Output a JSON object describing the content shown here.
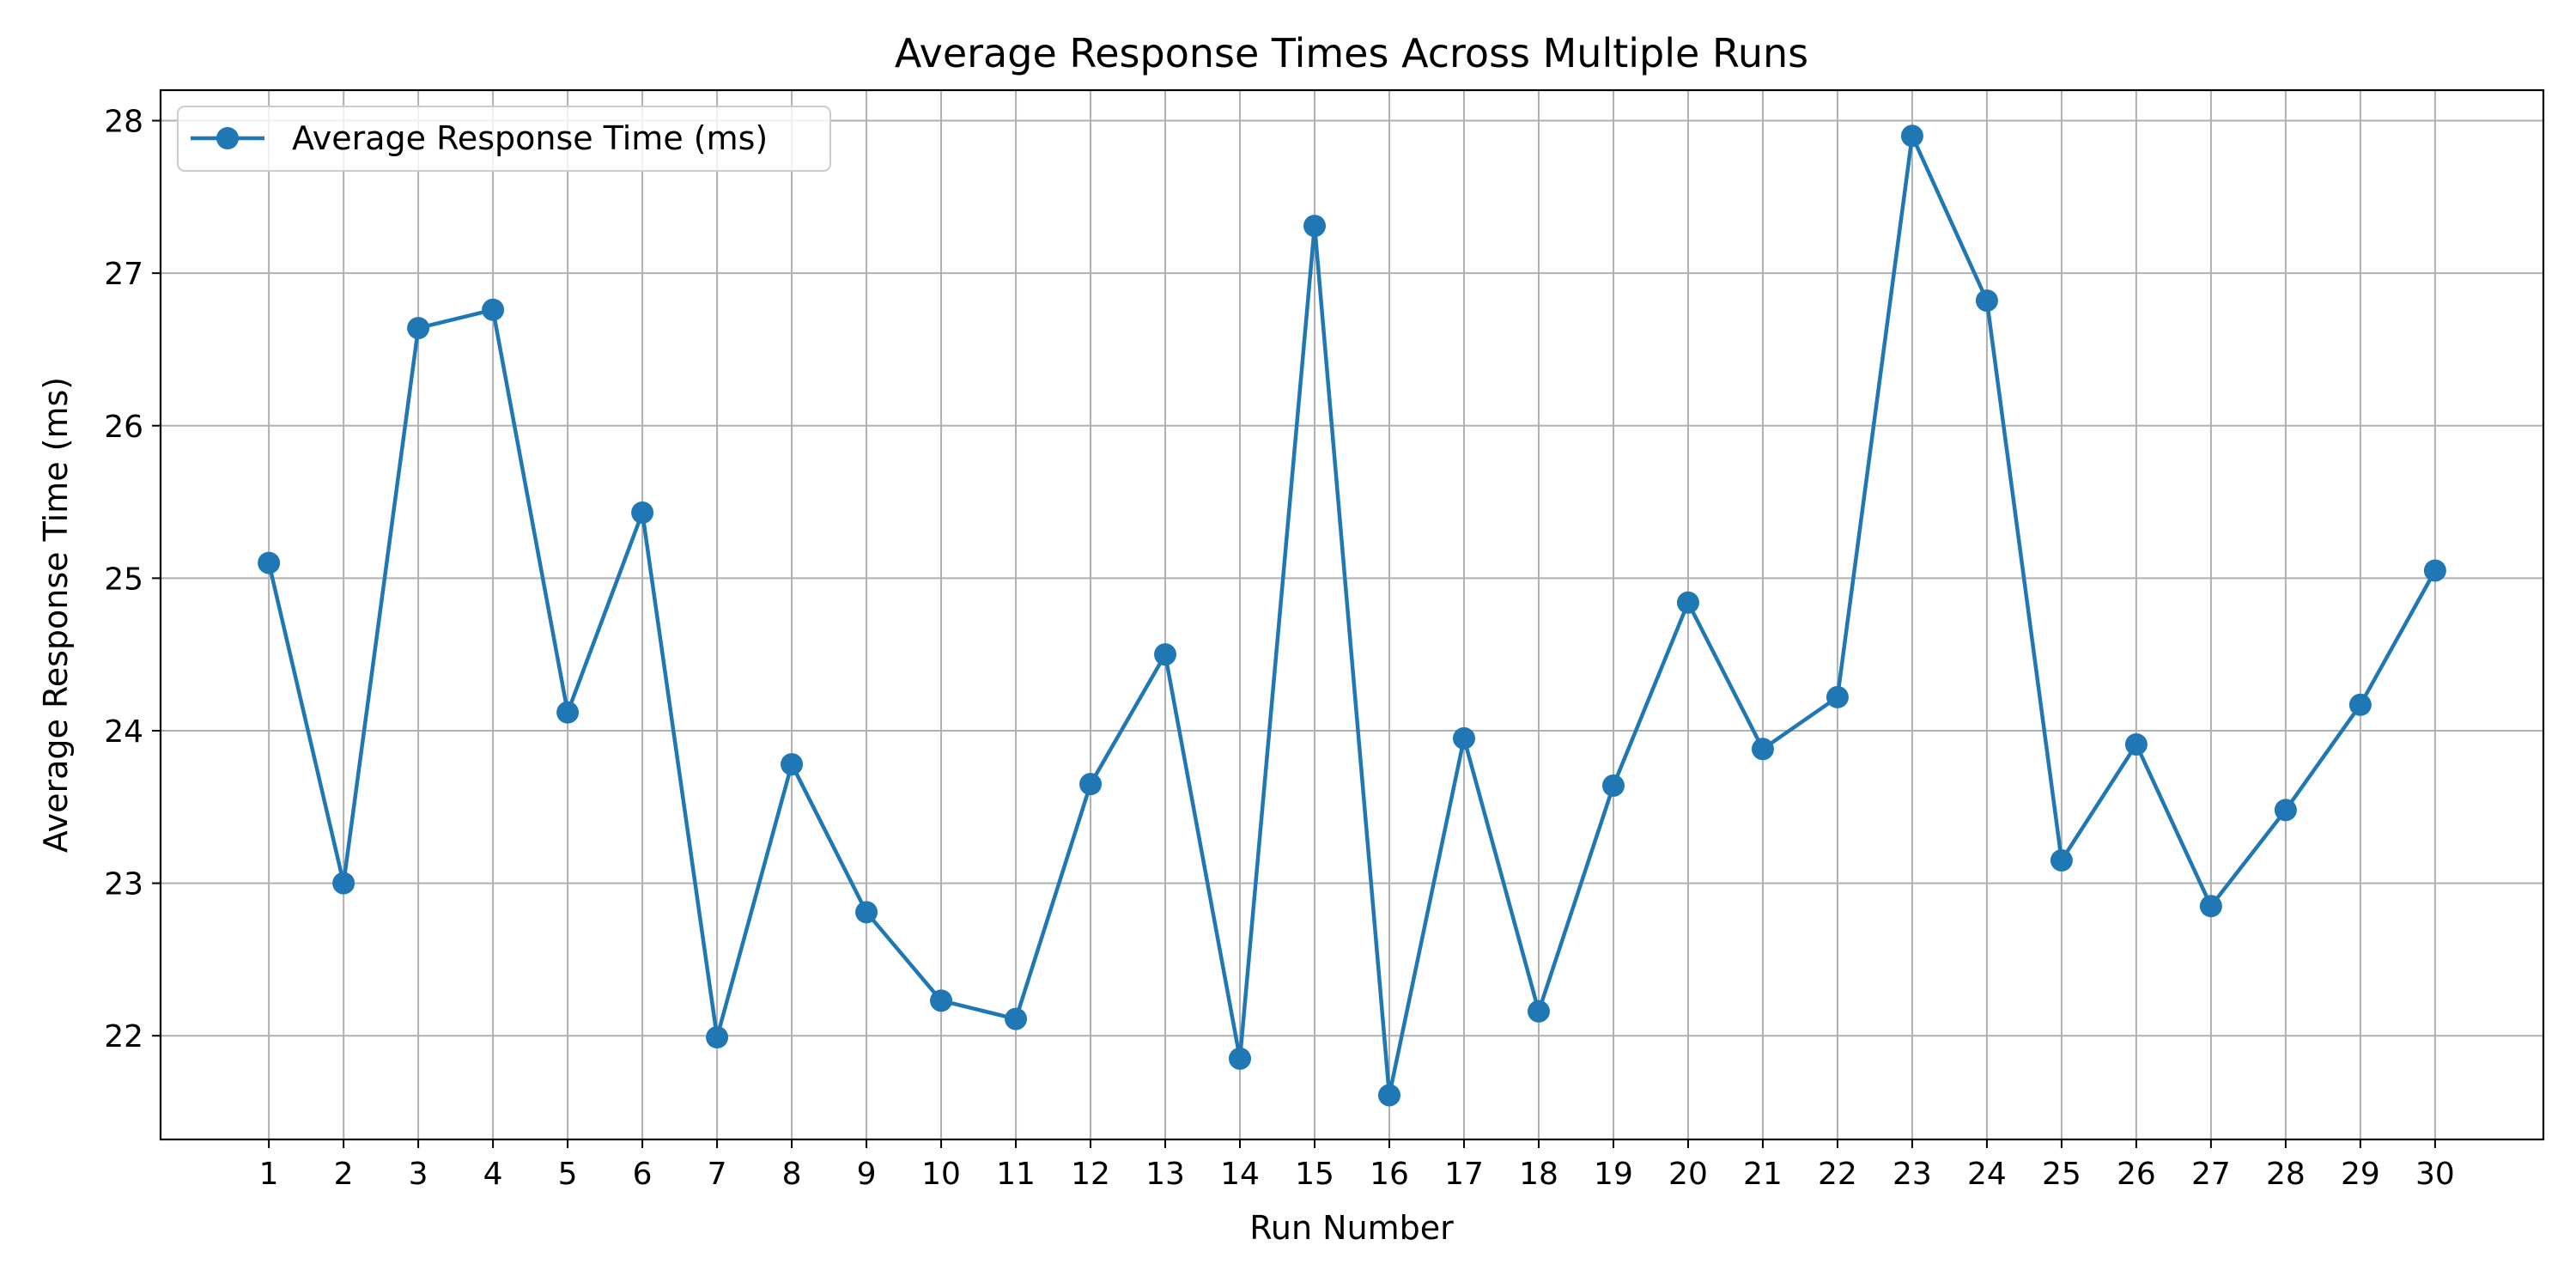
{
  "chart_data": {
    "type": "line",
    "title": "Average Response Times Across Multiple Runs",
    "xlabel": "Run Number",
    "ylabel": "Average Response Time (ms)",
    "x": [
      1,
      2,
      3,
      4,
      5,
      6,
      7,
      8,
      9,
      10,
      11,
      12,
      13,
      14,
      15,
      16,
      17,
      18,
      19,
      20,
      21,
      22,
      23,
      24,
      25,
      26,
      27,
      28,
      29,
      30
    ],
    "series": [
      {
        "name": "Average Response Time (ms)",
        "color": "#1f77b4",
        "marker": "circle",
        "values": [
          25.1,
          23.0,
          26.64,
          26.76,
          24.12,
          25.43,
          21.99,
          23.78,
          22.81,
          22.23,
          22.11,
          23.65,
          24.5,
          21.85,
          27.31,
          21.61,
          23.95,
          22.16,
          23.64,
          24.84,
          23.88,
          24.22,
          27.9,
          26.82,
          23.15,
          23.91,
          22.85,
          23.48,
          24.17,
          25.05
        ]
      }
    ],
    "xlim": [
      -0.45,
      31.45
    ],
    "ylim": [
      21.32,
      28.2
    ],
    "yticks": [
      22,
      23,
      24,
      25,
      26,
      27,
      28
    ],
    "grid": true,
    "legend": "top-left"
  }
}
